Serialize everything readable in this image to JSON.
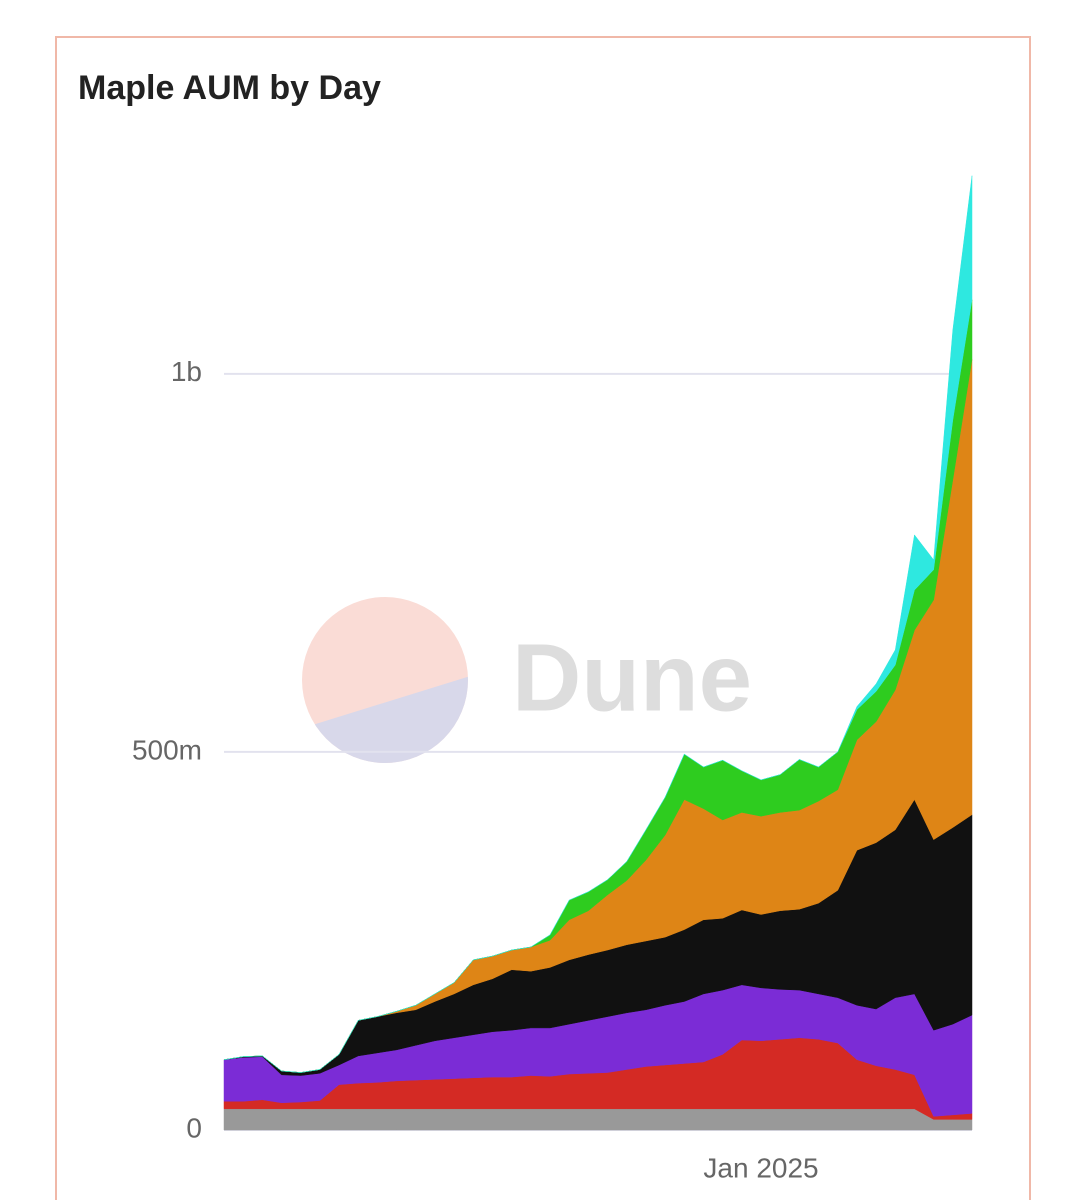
{
  "chart_data": {
    "type": "stacked-area",
    "title": "Maple AUM by Day",
    "watermark": "Dune",
    "categories": [
      null,
      null,
      null,
      null,
      null,
      null,
      null,
      null,
      null,
      null,
      null,
      null,
      null,
      null,
      null,
      null,
      null,
      null,
      null,
      null,
      null,
      null,
      null,
      null,
      null,
      null,
      null,
      null,
      "Jan 2025",
      null,
      null,
      null,
      null,
      null,
      null,
      null,
      null,
      null,
      null,
      null
    ],
    "ylim": [
      0,
      1300000000
    ],
    "yticks": [
      0,
      {
        "value": 500000000,
        "label": "500m"
      },
      {
        "value": 1000000000,
        "label": "1b"
      }
    ],
    "grid": true,
    "series": [
      {
        "color": "#999999",
        "values": [
          28000000,
          28000000,
          28000000,
          28000000,
          28000000,
          28000000,
          28000000,
          28000000,
          28000000,
          28000000,
          28000000,
          28000000,
          28000000,
          28000000,
          28000000,
          28000000,
          28000000,
          28000000,
          28000000,
          28000000,
          28000000,
          28000000,
          28000000,
          28000000,
          28000000,
          28000000,
          28000000,
          28000000,
          28000000,
          28000000,
          28000000,
          28000000,
          28000000,
          28000000,
          28000000,
          28000000,
          28000000,
          14000000,
          14000000,
          14000000
        ]
      },
      {
        "color": "#d42a24",
        "values": [
          10000000,
          10000000,
          12000000,
          8000000,
          9000000,
          11000000,
          32000000,
          34000000,
          35000000,
          37000000,
          38000000,
          39000000,
          40000000,
          41000000,
          42000000,
          42000000,
          44000000,
          43000000,
          46000000,
          47000000,
          48000000,
          52000000,
          56000000,
          58000000,
          60000000,
          62000000,
          72000000,
          91000000,
          90000000,
          92000000,
          94000000,
          92000000,
          87000000,
          65000000,
          57000000,
          52000000,
          45000000,
          4000000,
          6000000,
          8000000
        ]
      },
      {
        "color": "#7b2cd6",
        "values": [
          55000000,
          58000000,
          57000000,
          37000000,
          35000000,
          36000000,
          26000000,
          36000000,
          39000000,
          41000000,
          46000000,
          51000000,
          54000000,
          57000000,
          60000000,
          62000000,
          63000000,
          64000000,
          66000000,
          70000000,
          74000000,
          75000000,
          75000000,
          79000000,
          82000000,
          90000000,
          85000000,
          73000000,
          70000000,
          66000000,
          63000000,
          60000000,
          60000000,
          72000000,
          75000000,
          95000000,
          107000000,
          114000000,
          120000000,
          130000000
        ]
      },
      {
        "color": "#111111",
        "values": [
          0,
          1000000,
          1000000,
          5000000,
          4000000,
          5000000,
          14000000,
          47000000,
          48000000,
          49000000,
          47000000,
          52000000,
          58000000,
          66000000,
          70000000,
          80000000,
          75000000,
          80000000,
          85000000,
          87000000,
          88000000,
          90000000,
          91000000,
          90000000,
          95000000,
          98000000,
          95000000,
          99000000,
          97000000,
          104000000,
          107000000,
          120000000,
          142000000,
          205000000,
          220000000,
          222000000,
          257000000,
          252000000,
          260000000,
          265000000
        ]
      },
      {
        "color": "#de8516",
        "values": [
          0,
          0,
          0,
          0,
          0,
          0,
          0,
          0,
          0,
          2000000,
          6000000,
          10000000,
          15000000,
          33000000,
          30000000,
          26000000,
          32000000,
          36000000,
          53000000,
          58000000,
          73000000,
          85000000,
          107000000,
          135000000,
          172000000,
          147000000,
          130000000,
          129000000,
          130000000,
          130000000,
          131000000,
          135000000,
          133000000,
          146000000,
          160000000,
          185000000,
          224000000,
          317000000,
          460000000,
          602000000
        ]
      },
      {
        "color": "#2ecc1f",
        "values": [
          0,
          0,
          0,
          0,
          0,
          0,
          0,
          0,
          0,
          0,
          0,
          0,
          0,
          0,
          0,
          0,
          0,
          7000000,
          26000000,
          25000000,
          20000000,
          25000000,
          40000000,
          50000000,
          60000000,
          55000000,
          79000000,
          55000000,
          48000000,
          50000000,
          67000000,
          45000000,
          50000000,
          40000000,
          40000000,
          33000000,
          53000000,
          40000000,
          79000000,
          79000000
        ]
      },
      {
        "color": "#2ee8e0",
        "values": [
          0,
          0,
          0,
          0,
          0,
          0,
          0,
          0,
          0,
          0,
          0,
          0,
          0,
          0,
          0,
          0,
          0,
          0,
          0,
          0,
          0,
          0,
          0,
          0,
          0,
          0,
          0,
          0,
          0,
          0,
          0,
          0,
          0,
          4000000,
          10000000,
          20000000,
          73000000,
          13000000,
          119000000,
          164000000
        ]
      }
    ]
  }
}
